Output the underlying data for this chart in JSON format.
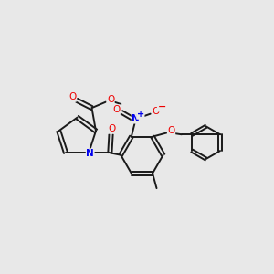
{
  "background_color": "#e8e8e8",
  "bond_color": "#1a1a1a",
  "nitrogen_color": "#0000ee",
  "oxygen_color": "#ee0000",
  "figsize": [
    3.0,
    3.0
  ],
  "dpi": 100,
  "xlim": [
    0,
    10
  ],
  "ylim": [
    0,
    10
  ]
}
